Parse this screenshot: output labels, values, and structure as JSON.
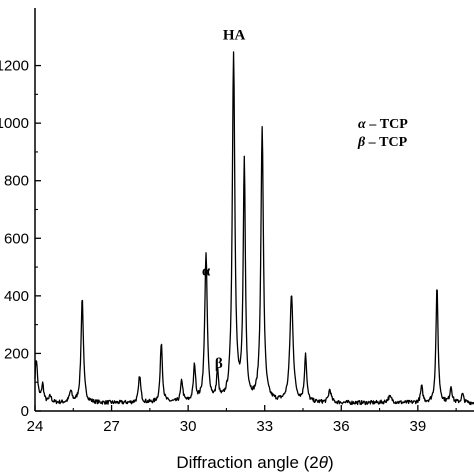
{
  "chart_data": {
    "type": "line",
    "title": "",
    "xlabel": "Diffraction angle (2θ)",
    "xlabel_prefix": "Diffraction angle (2",
    "xlabel_symbol": "θ",
    "xlabel_suffix": ")",
    "ylabel": "",
    "xlim": [
      24,
      41.2
    ],
    "ylim": [
      0,
      1400
    ],
    "x_ticks": [
      24,
      27,
      30,
      33,
      36,
      39
    ],
    "x_tick_labels": [
      "24",
      "27",
      "30",
      "33",
      "36",
      "39"
    ],
    "y_ticks": [
      0,
      200,
      400,
      600,
      800,
      1000,
      1200
    ],
    "y_tick_labels": [
      "0",
      "200",
      "400",
      "600",
      "800",
      "1000",
      "1200"
    ],
    "grid": false,
    "legend": {
      "placement": "top-right",
      "entries": [
        {
          "symbol": "α",
          "text": " – TCP"
        },
        {
          "symbol": "β",
          "text": " – TCP"
        }
      ]
    },
    "annotations": [
      {
        "text": "HA",
        "x": 31.8,
        "y": 1290
      },
      {
        "text": "α",
        "x": 30.7,
        "y": 470
      },
      {
        "text": "β",
        "x": 31.2,
        "y": 150
      }
    ],
    "series": [
      {
        "background": 28,
        "peaks": [
          {
            "x": 24.05,
            "height": 150,
            "width": 0.06
          },
          {
            "x": 24.3,
            "height": 60,
            "width": 0.05
          },
          {
            "x": 24.6,
            "height": 22,
            "width": 0.05
          },
          {
            "x": 25.4,
            "height": 38,
            "width": 0.06
          },
          {
            "x": 25.85,
            "height": 365,
            "width": 0.055
          },
          {
            "x": 28.1,
            "height": 95,
            "width": 0.05
          },
          {
            "x": 28.95,
            "height": 210,
            "width": 0.05
          },
          {
            "x": 29.75,
            "height": 75,
            "width": 0.05
          },
          {
            "x": 30.25,
            "height": 125,
            "width": 0.05
          },
          {
            "x": 30.7,
            "height": 510,
            "width": 0.06
          },
          {
            "x": 31.15,
            "height": 100,
            "width": 0.045
          },
          {
            "x": 31.78,
            "height": 1205,
            "width": 0.06
          },
          {
            "x": 32.2,
            "height": 830,
            "width": 0.05
          },
          {
            "x": 32.9,
            "height": 945,
            "width": 0.06
          },
          {
            "x": 34.05,
            "height": 370,
            "width": 0.075
          },
          {
            "x": 34.6,
            "height": 165,
            "width": 0.05
          },
          {
            "x": 35.55,
            "height": 45,
            "width": 0.06
          },
          {
            "x": 37.9,
            "height": 20,
            "width": 0.1
          },
          {
            "x": 39.15,
            "height": 55,
            "width": 0.05
          },
          {
            "x": 39.75,
            "height": 400,
            "width": 0.05
          },
          {
            "x": 40.3,
            "height": 55,
            "width": 0.05
          },
          {
            "x": 40.75,
            "height": 30,
            "width": 0.05
          }
        ]
      }
    ]
  }
}
